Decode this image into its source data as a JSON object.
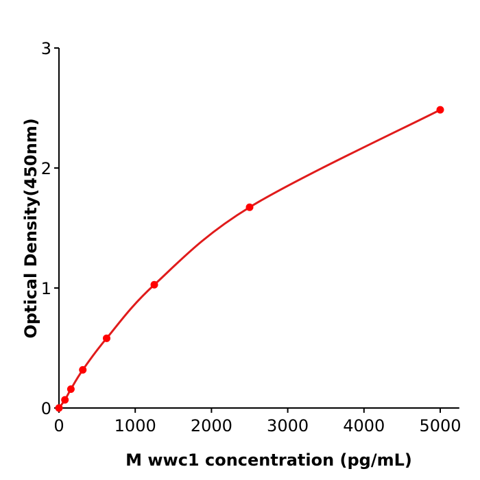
{
  "chart_data": {
    "type": "line",
    "title": "",
    "xlabel": "M  wwc1 concentration (pg/mL)",
    "ylabel": "Optical Density(450nm)",
    "xlim": [
      0,
      5250
    ],
    "ylim": [
      0,
      3
    ],
    "xticks": [
      "0",
      "1000",
      "2000",
      "3000",
      "4000",
      "5000"
    ],
    "yticks": [
      "0",
      "1",
      "2",
      "3"
    ],
    "grid": false,
    "colors": {
      "curve": "#e01b1b",
      "points": "#ff0000"
    },
    "series": [
      {
        "x": [
          0,
          78.125,
          156.25,
          312.5,
          625,
          1250,
          2500,
          5000
        ],
        "y": [
          0.0,
          0.068,
          0.157,
          0.318,
          0.581,
          1.027,
          1.673,
          2.485
        ]
      }
    ]
  }
}
